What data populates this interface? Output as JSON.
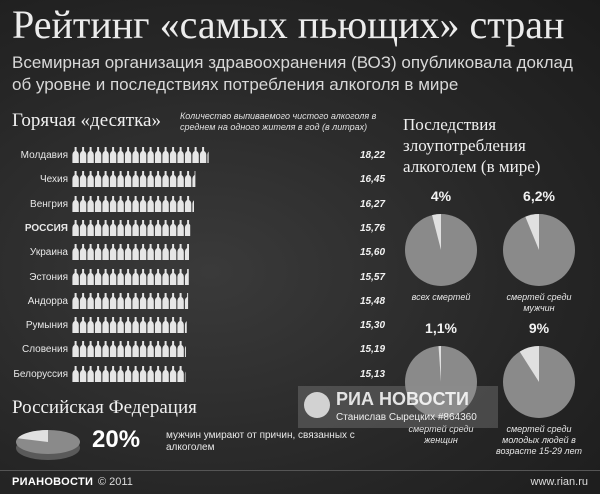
{
  "header": {
    "title": "Рейтинг «самых пьющих» стран",
    "subtitle": "Всемирная организация здравоохранения (ВОЗ) опубликовала доклад об уровне и последствиях потребления алкоголя в мире"
  },
  "ranking": {
    "heading": "Горячая «десятка»",
    "note": "Количество выпиваемого чистого алкоголя в среднем на одного жителя в год (в литрах)"
  },
  "consequences": {
    "heading": "Последствия злоупотребления алкоголем (в мире)",
    "items": [
      {
        "pct": "4%",
        "caption": "всех смертей",
        "value": 4
      },
      {
        "pct": "6,2%",
        "caption": "смертей среди мужчин",
        "value": 6.2
      },
      {
        "pct": "1,1%",
        "caption": "смертей среди женщин",
        "value": 1.1
      },
      {
        "pct": "9%",
        "caption": "смертей среди молодых людей в возрасте 15-29 лет",
        "value": 9
      }
    ]
  },
  "russia": {
    "heading": "Российская Федерация",
    "pct": "20%",
    "value": 20,
    "text": "мужчин умирают от причин, связанных с алкоголем"
  },
  "watermark": {
    "brand": "РИА НОВОСТИ",
    "credit": "Станислав Сырецких #864360"
  },
  "footer": {
    "brand": "РИАНОВОСТИ",
    "copyright": "© 2011",
    "site": "www.rian.ru"
  },
  "colors": {
    "background": "#2a2a2a",
    "pie_fill": "#8a8a8a",
    "pie_slice": "#e0e0e0",
    "bottle": "#e6e6e6"
  },
  "chart_data": {
    "type": "bar",
    "title": "Горячая «десятка»",
    "categories": [
      "Молдавия",
      "Чехия",
      "Венгрия",
      "РОССИЯ",
      "Украина",
      "Эстония",
      "Андорра",
      "Румыния",
      "Словения",
      "Белоруссия"
    ],
    "values": [
      18.22,
      16.45,
      16.27,
      15.76,
      15.6,
      15.57,
      15.48,
      15.3,
      15.19,
      15.13
    ],
    "labels": [
      "18,22",
      "16,45",
      "16,27",
      "15,76",
      "15,60",
      "15,57",
      "15,48",
      "15,30",
      "15,19",
      "15,13"
    ],
    "unit": "литры"
  }
}
